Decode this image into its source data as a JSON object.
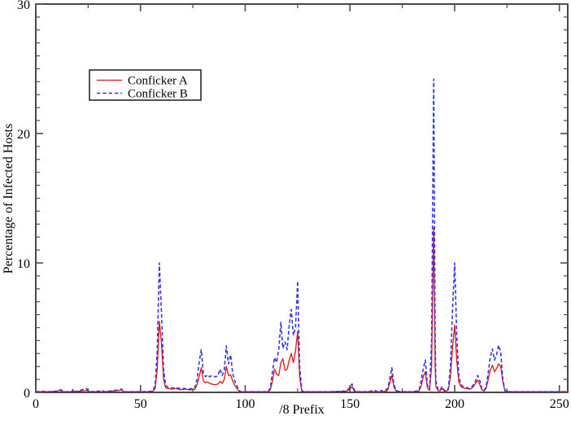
{
  "chart_data": {
    "type": "line",
    "title": "",
    "xlabel": "/8 Prefix",
    "ylabel": "Percentage of Infected Hosts",
    "xlim": [
      0,
      254
    ],
    "ylim": [
      0,
      30
    ],
    "x_major_ticks": [
      0,
      50,
      100,
      150,
      200,
      250
    ],
    "x_major_labels": [
      "0",
      "50",
      "100",
      "150",
      "200",
      "250"
    ],
    "x_minor_ticks": [
      25,
      75,
      125,
      175,
      225
    ],
    "y_major_ticks": [
      0,
      10,
      20,
      30
    ],
    "y_major_labels": [
      "0",
      "10",
      "20",
      "30"
    ],
    "y_minor_step": 1,
    "grid": false,
    "legend_position": "upper-left-inside",
    "series": [
      {
        "name": "Conficker A",
        "color": "#e81111",
        "dash": "solid"
      },
      {
        "name": "Conficker B",
        "color": "#3535ee",
        "dash": "dashed"
      }
    ],
    "points_format": [
      "x_slash8_prefix",
      "conficker_a_pct",
      "conficker_b_pct"
    ],
    "points": [
      [
        0,
        0.05,
        0.05
      ],
      [
        3,
        0.05,
        0.08
      ],
      [
        6,
        0.05,
        0.05
      ],
      [
        10,
        0.08,
        0.1
      ],
      [
        12,
        0.22,
        0.15
      ],
      [
        13,
        0.05,
        0.05
      ],
      [
        17,
        0.05,
        0.05
      ],
      [
        18,
        0.1,
        0.25
      ],
      [
        19,
        0.05,
        0.05
      ],
      [
        24,
        0.15,
        0.3
      ],
      [
        25,
        0.1,
        0.15
      ],
      [
        26,
        0.05,
        0.05
      ],
      [
        32,
        0.05,
        0.12
      ],
      [
        33,
        0.05,
        0.05
      ],
      [
        40,
        0.15,
        0.2
      ],
      [
        41,
        0.2,
        0.25
      ],
      [
        42,
        0.05,
        0.05
      ],
      [
        50,
        0.05,
        0.05
      ],
      [
        55,
        0.05,
        0.08
      ],
      [
        56,
        0.1,
        0.15
      ],
      [
        57,
        0.3,
        0.6
      ],
      [
        58,
        1.8,
        3.2
      ],
      [
        59,
        5.5,
        10
      ],
      [
        60,
        3.8,
        6.2
      ],
      [
        61,
        1,
        1.8
      ],
      [
        62,
        0.35,
        0.55
      ],
      [
        63,
        0.3,
        0.4
      ],
      [
        65,
        0.25,
        0.35
      ],
      [
        67,
        0.3,
        0.35
      ],
      [
        69,
        0.2,
        0.3
      ],
      [
        71,
        0.25,
        0.3
      ],
      [
        73,
        0.2,
        0.25
      ],
      [
        75,
        0.2,
        0.3
      ],
      [
        76,
        0.25,
        0.4
      ],
      [
        77,
        0.6,
        1
      ],
      [
        78,
        1.2,
        2.3
      ],
      [
        79,
        1.9,
        3.3
      ],
      [
        80,
        0.9,
        1.5
      ],
      [
        81,
        0.75,
        1.2
      ],
      [
        82,
        0.8,
        1.35
      ],
      [
        83,
        0.7,
        1.2
      ],
      [
        84,
        0.65,
        1.3
      ],
      [
        85,
        0.6,
        1.25
      ],
      [
        86,
        0.6,
        1.2
      ],
      [
        87,
        0.65,
        1.3
      ],
      [
        88,
        0.85,
        1.8
      ],
      [
        89,
        0.7,
        1.3
      ],
      [
        90,
        1,
        1.7
      ],
      [
        91,
        2,
        3.6
      ],
      [
        92,
        1.3,
        2.2
      ],
      [
        93,
        1.35,
        2.9
      ],
      [
        94,
        0.9,
        1.5
      ],
      [
        95,
        0.55,
        0.9
      ],
      [
        96,
        0.3,
        0.5
      ],
      [
        97,
        0.1,
        0.15
      ],
      [
        98,
        0.05,
        0.05
      ],
      [
        105,
        0.05,
        0.05
      ],
      [
        111,
        0.05,
        0.05
      ],
      [
        112,
        0.2,
        0.35
      ],
      [
        113,
        0.9,
        1.6
      ],
      [
        114,
        1.8,
        2.7
      ],
      [
        115,
        1.4,
        2.3
      ],
      [
        116,
        1.3,
        3.3
      ],
      [
        117,
        2.3,
        5.4
      ],
      [
        118,
        2.6,
        3.4
      ],
      [
        119,
        1.7,
        3.9
      ],
      [
        120,
        1.8,
        3.3
      ],
      [
        121,
        2.5,
        5.2
      ],
      [
        122,
        3,
        6.4
      ],
      [
        123,
        2.3,
        4.4
      ],
      [
        124,
        3.2,
        5
      ],
      [
        125,
        4.7,
        8.6
      ],
      [
        126,
        1.2,
        2
      ],
      [
        127,
        0.1,
        0.15
      ],
      [
        128,
        0.05,
        0.05
      ],
      [
        140,
        0.05,
        0.05
      ],
      [
        148,
        0.08,
        0.1
      ],
      [
        149,
        0.15,
        0.2
      ],
      [
        150,
        0.25,
        0.4
      ],
      [
        151,
        0.45,
        0.65
      ],
      [
        152,
        0.1,
        0.2
      ],
      [
        153,
        0.05,
        0.05
      ],
      [
        158,
        0.05,
        0.05
      ],
      [
        161,
        0.05,
        0.12
      ],
      [
        162,
        0.05,
        0.15
      ],
      [
        163,
        0.05,
        0.05
      ],
      [
        165,
        0.05,
        0.15
      ],
      [
        166,
        0.05,
        0.05
      ],
      [
        168,
        0.15,
        0.3
      ],
      [
        169,
        0.7,
        1
      ],
      [
        170,
        1.3,
        1.9
      ],
      [
        171,
        0.4,
        0.6
      ],
      [
        172,
        0.1,
        0.15
      ],
      [
        174,
        0.05,
        0.05
      ],
      [
        180,
        0.05,
        0.05
      ],
      [
        183,
        0.1,
        0.15
      ],
      [
        184,
        0.5,
        0.9
      ],
      [
        185,
        1.2,
        1.8
      ],
      [
        186,
        1.6,
        2.5
      ],
      [
        187,
        0.35,
        0.55
      ],
      [
        188,
        0.15,
        0.25
      ],
      [
        189,
        2,
        4
      ],
      [
        190,
        12.7,
        24.2
      ],
      [
        190.7,
        2,
        4
      ],
      [
        191,
        0.5,
        0.9
      ],
      [
        192,
        0.15,
        0.25
      ],
      [
        193,
        0.1,
        0.15
      ],
      [
        194,
        0.3,
        0.45
      ],
      [
        195,
        0.1,
        0.15
      ],
      [
        196,
        0.1,
        0.1
      ],
      [
        197,
        0.2,
        0.3
      ],
      [
        198,
        1.2,
        2
      ],
      [
        199,
        3.5,
        6.5
      ],
      [
        200,
        5.2,
        10
      ],
      [
        201,
        2.5,
        4.5
      ],
      [
        202,
        0.8,
        1.2
      ],
      [
        203,
        0.45,
        0.6
      ],
      [
        204,
        0.35,
        0.45
      ],
      [
        205,
        0.3,
        0.4
      ],
      [
        206,
        0.3,
        0.35
      ],
      [
        207,
        0.25,
        0.3
      ],
      [
        208,
        0.3,
        0.4
      ],
      [
        209,
        0.45,
        0.6
      ],
      [
        210,
        0.7,
        0.9
      ],
      [
        211,
        0.95,
        1.3
      ],
      [
        212,
        0.6,
        0.9
      ],
      [
        213,
        0.2,
        0.3
      ],
      [
        214,
        0.1,
        0.15
      ],
      [
        215,
        0.3,
        0.4
      ],
      [
        216,
        1,
        1.5
      ],
      [
        217,
        1.7,
        2.7
      ],
      [
        218,
        2.1,
        3.35
      ],
      [
        219,
        1.6,
        2.5
      ],
      [
        220,
        1.85,
        2.9
      ],
      [
        221,
        2.2,
        3.65
      ],
      [
        222,
        2,
        3.1
      ],
      [
        223,
        0.8,
        1
      ],
      [
        224,
        0.1,
        0.15
      ],
      [
        226,
        0.05,
        0.05
      ],
      [
        235,
        0.05,
        0.05
      ],
      [
        245,
        0.05,
        0.05
      ],
      [
        254,
        0.05,
        0.05
      ]
    ]
  },
  "colors": {
    "background": "#ffffff",
    "frame": "#1a1a1a",
    "tick": "#4d4d4d",
    "text": "#000000"
  }
}
